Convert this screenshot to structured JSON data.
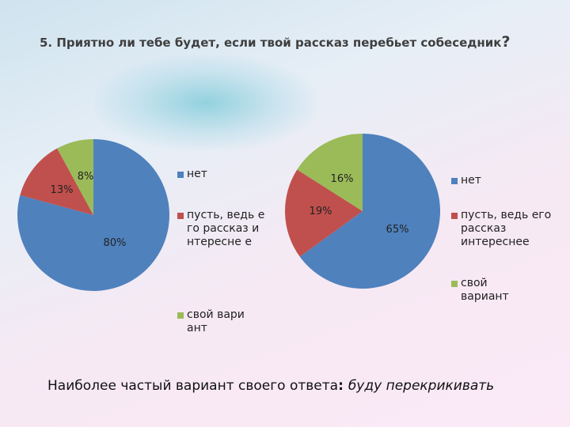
{
  "title": {
    "text": "5. Приятно ли тебе будет, если твой рассказ перебьет собеседник",
    "q": "?"
  },
  "chart_data": [
    {
      "type": "pie",
      "categories": [
        "нет",
        "пусть, ведь его рассказ интересне е",
        "свой вариант"
      ],
      "values": [
        80,
        13,
        8
      ],
      "labels": [
        "80%",
        "13%",
        "8%"
      ],
      "colors": [
        "#4f81bd",
        "#c0504d",
        "#9bbb59"
      ]
    },
    {
      "type": "pie",
      "categories": [
        "нет",
        "пусть, ведь его рассказ интереснее",
        "свой вариант"
      ],
      "values": [
        65,
        19,
        16
      ],
      "labels": [
        "65%",
        "19%",
        "16%"
      ],
      "colors": [
        "#4f81bd",
        "#c0504d",
        "#9bbb59"
      ]
    }
  ],
  "legend1": [
    {
      "text": "нет"
    },
    {
      "text": "пусть, ведь его рассказ интересне е"
    },
    {
      "text": "свой вариант"
    }
  ],
  "legend2": [
    {
      "text": "нет"
    },
    {
      "text": "пусть, ведь его рассказ интереснее"
    },
    {
      "text": "свой вариант"
    }
  ],
  "footer": {
    "lead": "Наиболее частый вариант своего ответа",
    "colon": ": ",
    "answer": "буду перекрикивать"
  }
}
